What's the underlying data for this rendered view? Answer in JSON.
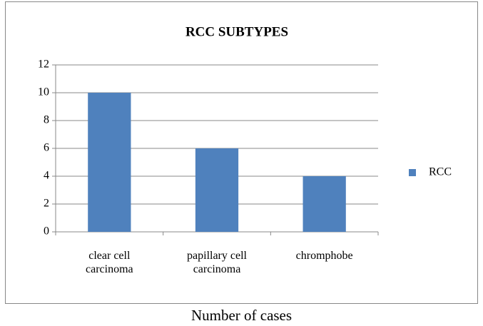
{
  "chart_data": {
    "type": "bar",
    "title": "RCC SUBTYPES",
    "x_label": "Number of cases",
    "categories": [
      "clear cell carcinoma",
      "papillary cell carcinoma",
      "chromphobe"
    ],
    "series": [
      {
        "name": "RCC",
        "color": "#4f81bd",
        "values": [
          10,
          6,
          4
        ]
      }
    ],
    "ylim": [
      0,
      12
    ],
    "yticks": [
      0,
      2,
      4,
      6,
      8,
      10,
      12
    ],
    "grid": true,
    "legend": "right"
  }
}
